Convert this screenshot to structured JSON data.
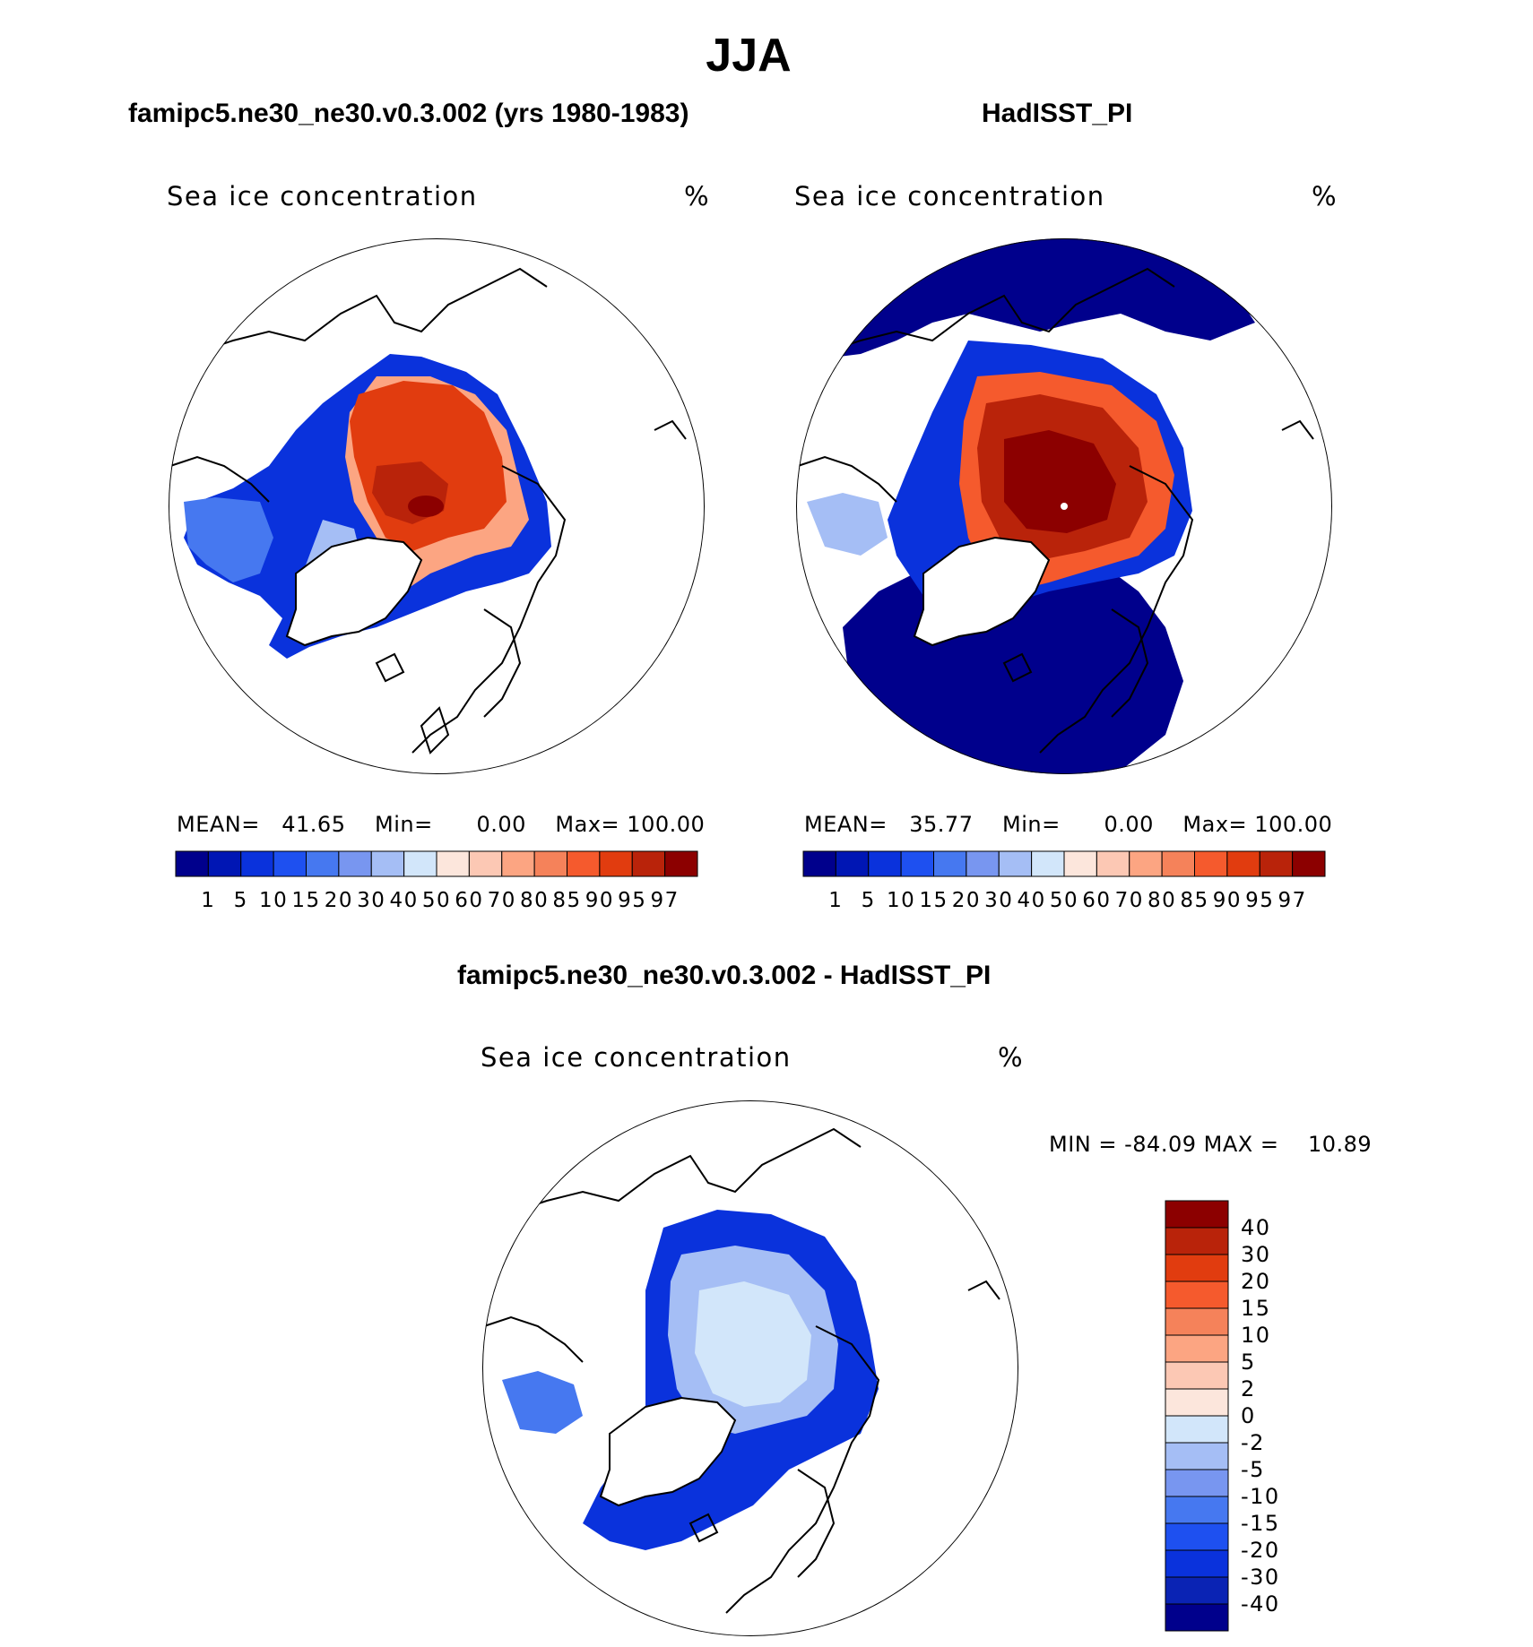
{
  "page": {
    "season": "JJA"
  },
  "colors": {
    "abs_palette": [
      "#00008c",
      "#0016b4",
      "#0a32dc",
      "#1e50f0",
      "#4678f0",
      "#7896f0",
      "#a5bef5",
      "#d2e6fa",
      "#fce6dc",
      "#fcc8b4",
      "#fca582",
      "#f5825a",
      "#f55a2d",
      "#e13c0f",
      "#b9230a",
      "#8c0000"
    ],
    "diff_palette": [
      "#00008c",
      "#0a23b4",
      "#0a32dc",
      "#1e50f0",
      "#4678f0",
      "#7896f0",
      "#a5bef5",
      "#d2e6fa",
      "#fce6dc",
      "#fcc8b4",
      "#fca582",
      "#f5825a",
      "#f55a2d",
      "#e13c0f",
      "#b9230a",
      "#8c0000"
    ],
    "land_outline": "#000000"
  },
  "panels": [
    {
      "title": "famipc5.ne30_ne30.v0.3.002 (yrs 1980-1983)",
      "variable": "Sea ice concentration",
      "units": "%",
      "stats": {
        "mean_label": "MEAN=",
        "mean": "41.65",
        "min_label": "Min=",
        "min": "0.00",
        "max_label": "Max=",
        "max": "100.00"
      },
      "colorbar_levels": [
        "1",
        "5",
        "10",
        "15",
        "20",
        "30",
        "40",
        "50",
        "60",
        "70",
        "80",
        "85",
        "90",
        "95",
        "97"
      ]
    },
    {
      "title": "HadISST_PI",
      "variable": "Sea ice concentration",
      "units": "%",
      "stats": {
        "mean_label": "MEAN=",
        "mean": "35.77",
        "min_label": "Min=",
        "min": "0.00",
        "max_label": "Max=",
        "max": "100.00"
      },
      "colorbar_levels": [
        "1",
        "5",
        "10",
        "15",
        "20",
        "30",
        "40",
        "50",
        "60",
        "70",
        "80",
        "85",
        "90",
        "95",
        "97"
      ]
    }
  ],
  "difference": {
    "title": "famipc5.ne30_ne30.v0.3.002 - HadISST_PI",
    "variable": "Sea ice concentration",
    "units": "%",
    "range_text": {
      "min_label": "MIN =",
      "min": "-84.09",
      "max_label": "MAX =",
      "max": "10.89"
    },
    "colorbar_levels": [
      "40",
      "30",
      "20",
      "15",
      "10",
      "5",
      "2",
      "0",
      "-2",
      "-5",
      "-10",
      "-15",
      "-20",
      "-30",
      "-40"
    ]
  }
}
